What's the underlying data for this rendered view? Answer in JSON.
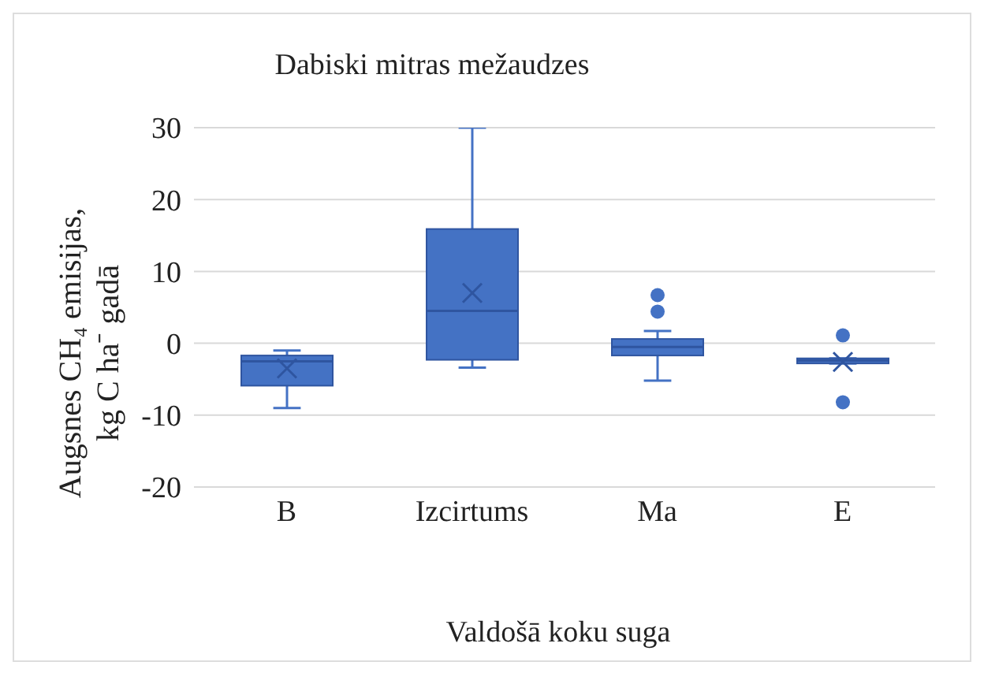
{
  "chart_data": {
    "type": "box",
    "title": "Dabiski mitras mežaudzes",
    "xlabel": "Valdošā koku suga",
    "ylabel": "Augsnes CH₄ emisijas, kg C ha⁻ gadā",
    "categories": [
      "B",
      "Izcirtums",
      "Ma",
      "E"
    ],
    "boxes": [
      {
        "low": -9.0,
        "q1": -5.9,
        "median": -2.5,
        "q3": -1.7,
        "high": -1.0,
        "mean": -3.5
      },
      {
        "low": -3.4,
        "q1": -2.3,
        "median": 4.5,
        "q3": 15.9,
        "high": 30,
        "mean": 7.0
      },
      {
        "low": -5.2,
        "q1": -1.7,
        "median": -0.5,
        "q3": 0.6,
        "high": 1.7,
        "outliers": [
          6.7,
          4.4
        ]
      },
      {
        "low": -2.8,
        "q1": -2.8,
        "median": -2.4,
        "q3": -2.1,
        "high": -2.1,
        "mean": -2.6,
        "outliers": [
          1.1,
          -8.2
        ]
      }
    ],
    "color": "#4472c4",
    "ylim": [
      -20,
      30
    ],
    "yticks": [
      -20,
      -10,
      0,
      10,
      20,
      30
    ],
    "grid": "y"
  }
}
